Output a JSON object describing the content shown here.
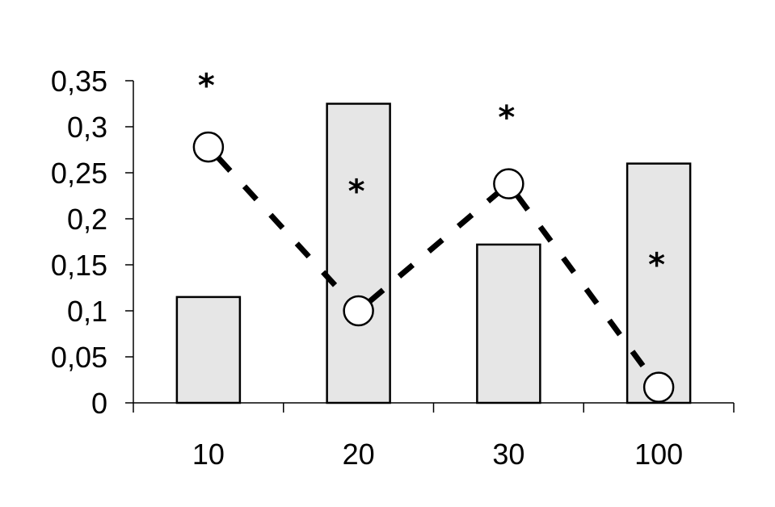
{
  "chart_data": {
    "type": "bar",
    "categories": [
      "10",
      "20",
      "30",
      "100"
    ],
    "series": [
      {
        "kind": "bar",
        "values": [
          0.115,
          0.325,
          0.172,
          0.26
        ]
      },
      {
        "kind": "line",
        "marker": "open-circle",
        "line_style": "dashed",
        "values": [
          0.278,
          0.1,
          0.238,
          0.017
        ]
      }
    ],
    "ylim": [
      0,
      0.35
    ],
    "y_ticks": [
      "0",
      "0,05",
      "0,1",
      "0,15",
      "0,2",
      "0,25",
      "0,3",
      "0,35"
    ],
    "y_tick_values": [
      0,
      0.05,
      0.1,
      0.15,
      0.2,
      0.25,
      0.3,
      0.35
    ],
    "annotations": [
      {
        "text": "*",
        "category": "10",
        "y": 0.355
      },
      {
        "text": "*",
        "category": "20",
        "y": 0.24
      },
      {
        "text": "*",
        "category": "30",
        "y": 0.32
      },
      {
        "text": "*",
        "category": "100",
        "y": 0.16
      }
    ],
    "title": "",
    "xlabel": "",
    "ylabel": "",
    "grid": false,
    "colors": {
      "bar_fill": "#e6e6e6",
      "stroke": "#000000",
      "marker_fill": "#ffffff"
    }
  }
}
